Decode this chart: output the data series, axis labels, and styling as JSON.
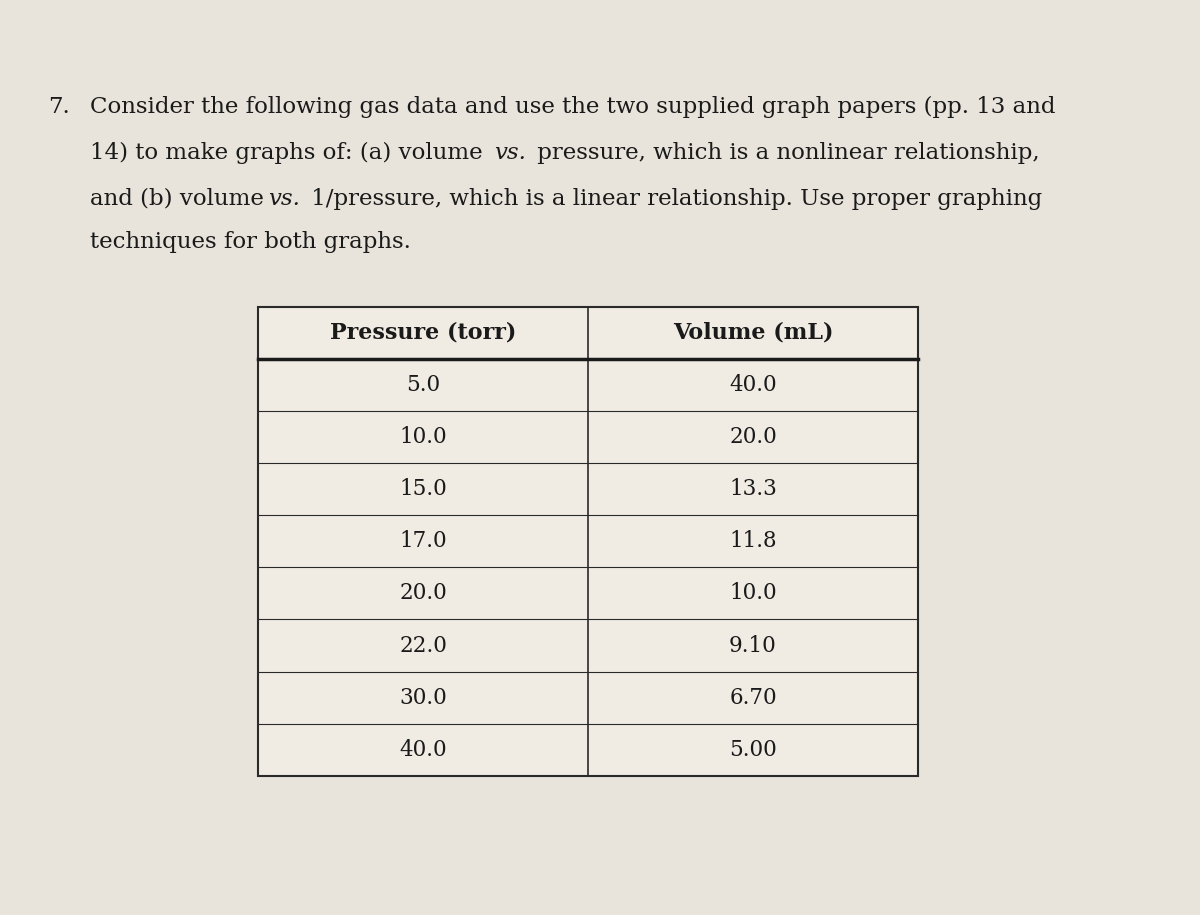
{
  "col1_header": "Pressure (torr)",
  "col2_header": "Volume (mL)",
  "pressure_str": [
    "5.0",
    "10.0",
    "15.0",
    "17.0",
    "20.0",
    "22.0",
    "30.0",
    "40.0"
  ],
  "volume_str": [
    "40.0",
    "20.0",
    "13.3",
    "11.8",
    "10.0",
    "9.10",
    "6.70",
    "5.00"
  ],
  "background_color": "#e8e4db",
  "table_bg": "#f0ece3",
  "text_color": "#1a1a1a",
  "font_size_text": 16.5,
  "font_size_header": 16,
  "font_size_data": 15.5,
  "problem_number": "7.",
  "line1_normal": "Consider the following gas data and use the two supplied graph papers (pp. 13 and",
  "line2_pre": "14) to make graphs of: (a) volume ",
  "line2_vs": "vs.",
  "line2_post": " pressure, which is a nonlinear relationship,",
  "line3_pre": "and (b) volume ",
  "line3_vs": "vs.",
  "line3_post": " 1/pressure, which is a linear relationship. Use proper graphing",
  "line4_normal": "techniques for both graphs."
}
